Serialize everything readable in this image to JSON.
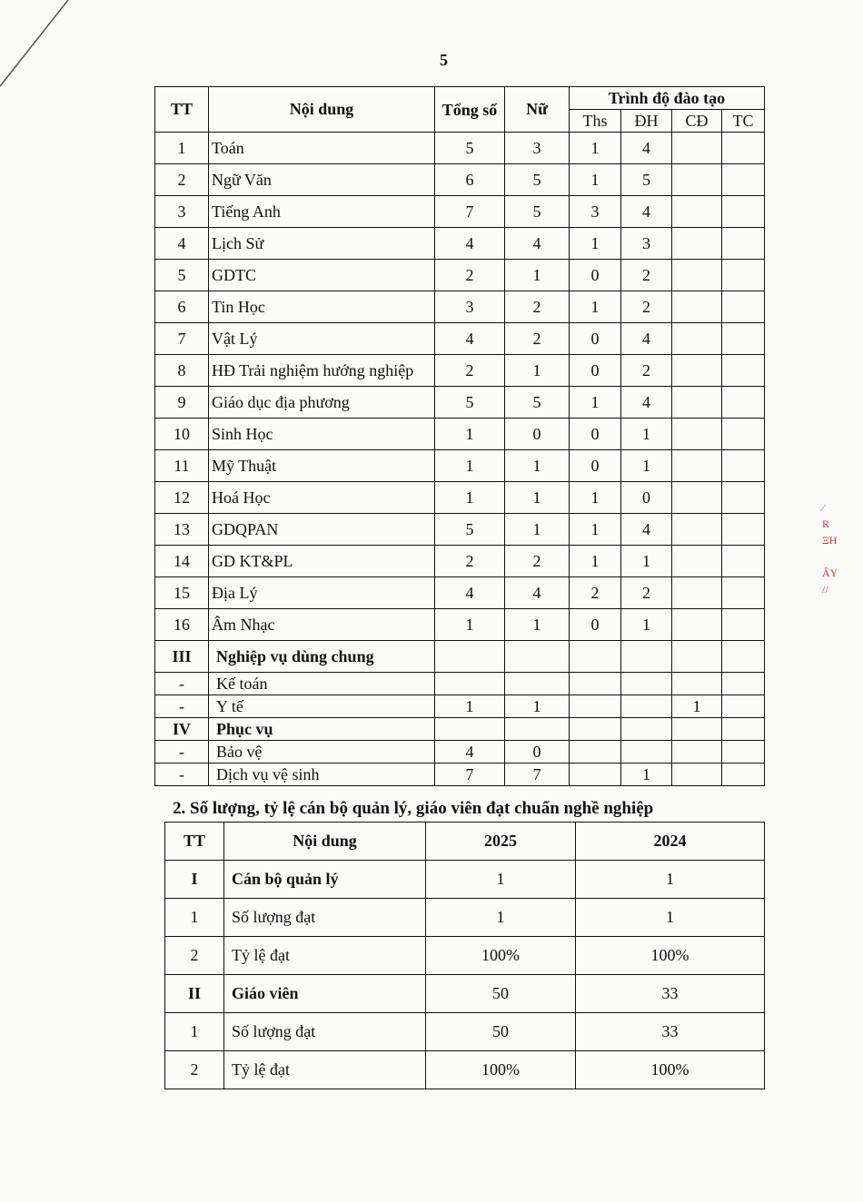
{
  "page_number": "5",
  "table1": {
    "headers": {
      "tt": "TT",
      "content": "Nội dung",
      "total": "Tổng số",
      "female": "Nữ",
      "level": "Trình độ đào tạo",
      "ths": "Ths",
      "dh": "ĐH",
      "cd": "CĐ",
      "tc": "TC"
    },
    "rows": [
      [
        "1",
        "Toán",
        "5",
        "3",
        "1",
        "4",
        "",
        ""
      ],
      [
        "2",
        "Ngữ Văn",
        "6",
        "5",
        "1",
        "5",
        "",
        ""
      ],
      [
        "3",
        "Tiếng Anh",
        "7",
        "5",
        "3",
        "4",
        "",
        ""
      ],
      [
        "4",
        "Lịch Sử",
        "4",
        "4",
        "1",
        "3",
        "",
        ""
      ],
      [
        "5",
        "GDTC",
        "2",
        "1",
        "0",
        "2",
        "",
        ""
      ],
      [
        "6",
        "Tin Học",
        "3",
        "2",
        "1",
        "2",
        "",
        ""
      ],
      [
        "7",
        "Vật Lý",
        "4",
        "2",
        "0",
        "4",
        "",
        ""
      ],
      [
        "8",
        "HĐ Trải nghiệm hướng nghiệp",
        "2",
        "1",
        "0",
        "2",
        "",
        ""
      ],
      [
        "9",
        "Giáo dục địa phương",
        "5",
        "5",
        "1",
        "4",
        "",
        ""
      ],
      [
        "10",
        "Sinh Học",
        "1",
        "0",
        "0",
        "1",
        "",
        ""
      ],
      [
        "11",
        "Mỹ Thuật",
        "1",
        "1",
        "0",
        "1",
        "",
        ""
      ],
      [
        "12",
        "Hoá Học",
        "1",
        "1",
        "1",
        "0",
        "",
        ""
      ],
      [
        "13",
        "GDQPAN",
        "5",
        "1",
        "1",
        "4",
        "",
        ""
      ],
      [
        "14",
        "GD KT&PL",
        "2",
        "2",
        "1",
        "1",
        "",
        ""
      ],
      [
        "15",
        "Địa Lý",
        "4",
        "4",
        "2",
        "2",
        "",
        ""
      ],
      [
        "16",
        "Âm Nhạc",
        "1",
        "1",
        "0",
        "1",
        "",
        ""
      ]
    ],
    "groups": [
      {
        "tt": "III",
        "label": "Nghiệp vụ dùng chung",
        "rows": [
          [
            "-",
            "Kế toán",
            "",
            "",
            "",
            "",
            "",
            ""
          ],
          [
            "-",
            "Y tế",
            "1",
            "1",
            "",
            "",
            "1",
            ""
          ]
        ]
      },
      {
        "tt": "IV",
        "label": "Phục vụ",
        "rows": [
          [
            "-",
            "Bảo vệ",
            "4",
            "0",
            "",
            "",
            "",
            ""
          ],
          [
            "-",
            "Dịch vụ vệ sinh",
            "7",
            "7",
            "",
            "1",
            "",
            ""
          ]
        ]
      }
    ]
  },
  "section2": {
    "title": "2. Số lượng, tỷ lệ cán bộ quản lý, giáo viên đạt chuẩn nghề nghiệp",
    "headers": [
      "TT",
      "Nội dung",
      "2025",
      "2024"
    ],
    "rows": [
      {
        "bold": true,
        "cells": [
          "I",
          "Cán bộ quản lý",
          "1",
          "1"
        ]
      },
      {
        "bold": false,
        "cells": [
          "1",
          "Số lượng đạt",
          "1",
          "1"
        ]
      },
      {
        "bold": false,
        "cells": [
          "2",
          "Tỷ lệ đạt",
          "100%",
          "100%"
        ]
      },
      {
        "bold": true,
        "cells": [
          "II",
          "Giáo viên",
          "50",
          "33"
        ]
      },
      {
        "bold": false,
        "cells": [
          "1",
          "Số lượng đạt",
          "50",
          "33"
        ]
      },
      {
        "bold": false,
        "cells": [
          "2",
          "Tỷ lệ đạt",
          "100%",
          "100%"
        ]
      }
    ]
  }
}
